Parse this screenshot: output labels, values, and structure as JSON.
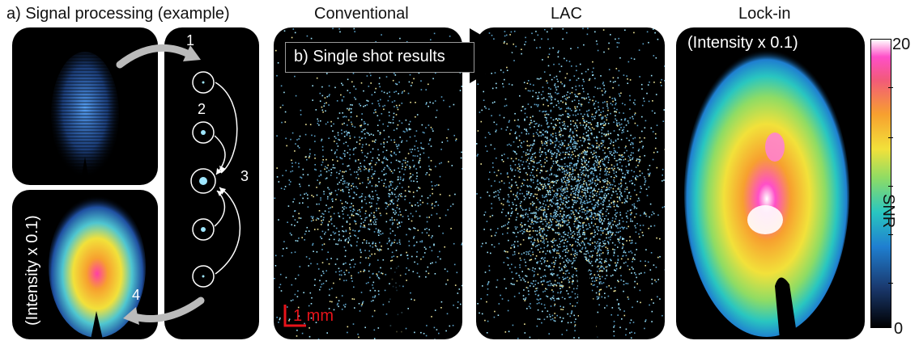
{
  "titles": {
    "signal_processing": "a) Signal processing (example)",
    "conventional": "Conventional",
    "lac": "LAC",
    "lockin": "Lock-in"
  },
  "labels": {
    "intensity_top": "(Intensity x 0.1)",
    "intensity_side": "(Intensity x 0.1)",
    "single_shot": "b) Single shot results",
    "scale": "1 mm"
  },
  "steps": [
    "1",
    "2",
    "3",
    "4"
  ],
  "colorbar": {
    "label": "SNR",
    "max": "20",
    "min": "0"
  },
  "colors": {
    "panel_bg": "#000000",
    "speckle": "#9fe6ff",
    "scale_red": "#e8131a"
  }
}
